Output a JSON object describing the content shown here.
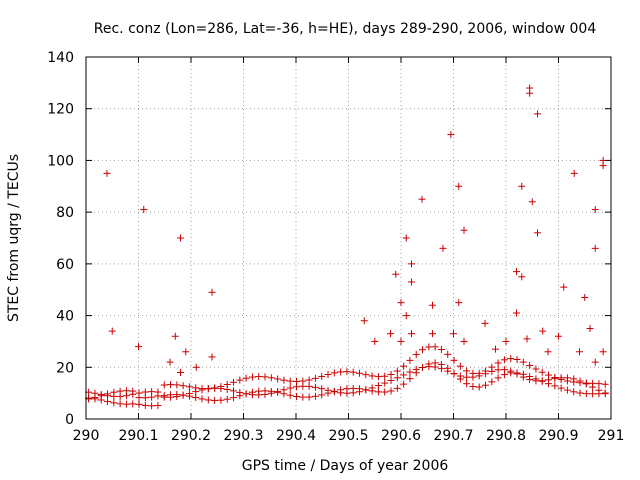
{
  "chart_data": {
    "type": "scatter",
    "title": "Rec. conz (Lon=286, Lat=-36, h=HE), days 289-290, 2006, window 004",
    "xlabel": "GPS time / Days of year 2006",
    "ylabel": "STEC from uqrg / TECUs",
    "xlim": [
      290,
      291
    ],
    "ylim": [
      0,
      140
    ],
    "x_ticks": [
      290,
      290.1,
      290.2,
      290.3,
      290.4,
      290.5,
      290.6,
      290.7,
      290.8,
      290.9,
      291
    ],
    "x_tick_labels": [
      "290",
      "290.1",
      "290.2",
      "290.3",
      "290.4",
      "290.5",
      "290.6",
      "290.7",
      "290.8",
      "290.9",
      "291"
    ],
    "y_ticks": [
      0,
      20,
      40,
      60,
      80,
      100,
      120,
      140
    ],
    "y_tick_labels": [
      "0",
      "20",
      "40",
      "60",
      "80",
      "100",
      "120",
      "140"
    ],
    "grid": true,
    "marker": "+",
    "color": "#cc0000",
    "series": [
      {
        "name": "STEC",
        "points": [
          [
            290.04,
            95
          ],
          [
            290.05,
            34
          ],
          [
            290.1,
            28
          ],
          [
            290.11,
            81
          ],
          [
            290.18,
            70
          ],
          [
            290.17,
            32
          ],
          [
            290.24,
            49
          ],
          [
            290.24,
            24
          ],
          [
            290.19,
            26
          ],
          [
            290.16,
            22
          ],
          [
            290.21,
            20
          ],
          [
            290.18,
            18
          ],
          [
            290.53,
            38
          ],
          [
            290.59,
            56
          ],
          [
            290.6,
            45
          ],
          [
            290.61,
            70
          ],
          [
            290.62,
            60
          ],
          [
            290.62,
            53
          ],
          [
            290.64,
            85
          ],
          [
            290.61,
            40
          ],
          [
            290.68,
            66
          ],
          [
            290.695,
            110
          ],
          [
            290.71,
            90
          ],
          [
            290.72,
            73
          ],
          [
            290.71,
            45
          ],
          [
            290.66,
            44
          ],
          [
            290.66,
            33
          ],
          [
            290.76,
            37
          ],
          [
            290.82,
            57
          ],
          [
            290.83,
            90
          ],
          [
            290.83,
            55
          ],
          [
            290.845,
            128
          ],
          [
            290.845,
            126
          ],
          [
            290.85,
            84
          ],
          [
            290.86,
            118
          ],
          [
            290.86,
            72
          ],
          [
            290.82,
            41
          ],
          [
            290.87,
            34
          ],
          [
            290.91,
            51
          ],
          [
            290.93,
            95
          ],
          [
            290.95,
            47
          ],
          [
            290.96,
            35
          ],
          [
            290.97,
            81
          ],
          [
            290.97,
            66
          ],
          [
            290.985,
            100
          ],
          [
            290.985,
            98
          ],
          [
            290.985,
            26
          ],
          [
            290.97,
            22
          ],
          [
            290.62,
            33
          ],
          [
            290.6,
            30
          ],
          [
            290.58,
            33
          ],
          [
            290.55,
            30
          ],
          [
            290.7,
            33
          ],
          [
            290.72,
            30
          ],
          [
            290.84,
            31
          ],
          [
            290.9,
            32
          ],
          [
            290.78,
            27
          ],
          [
            290.8,
            30
          ],
          [
            290.88,
            26
          ],
          [
            290.94,
            26
          ]
        ]
      }
    ]
  }
}
